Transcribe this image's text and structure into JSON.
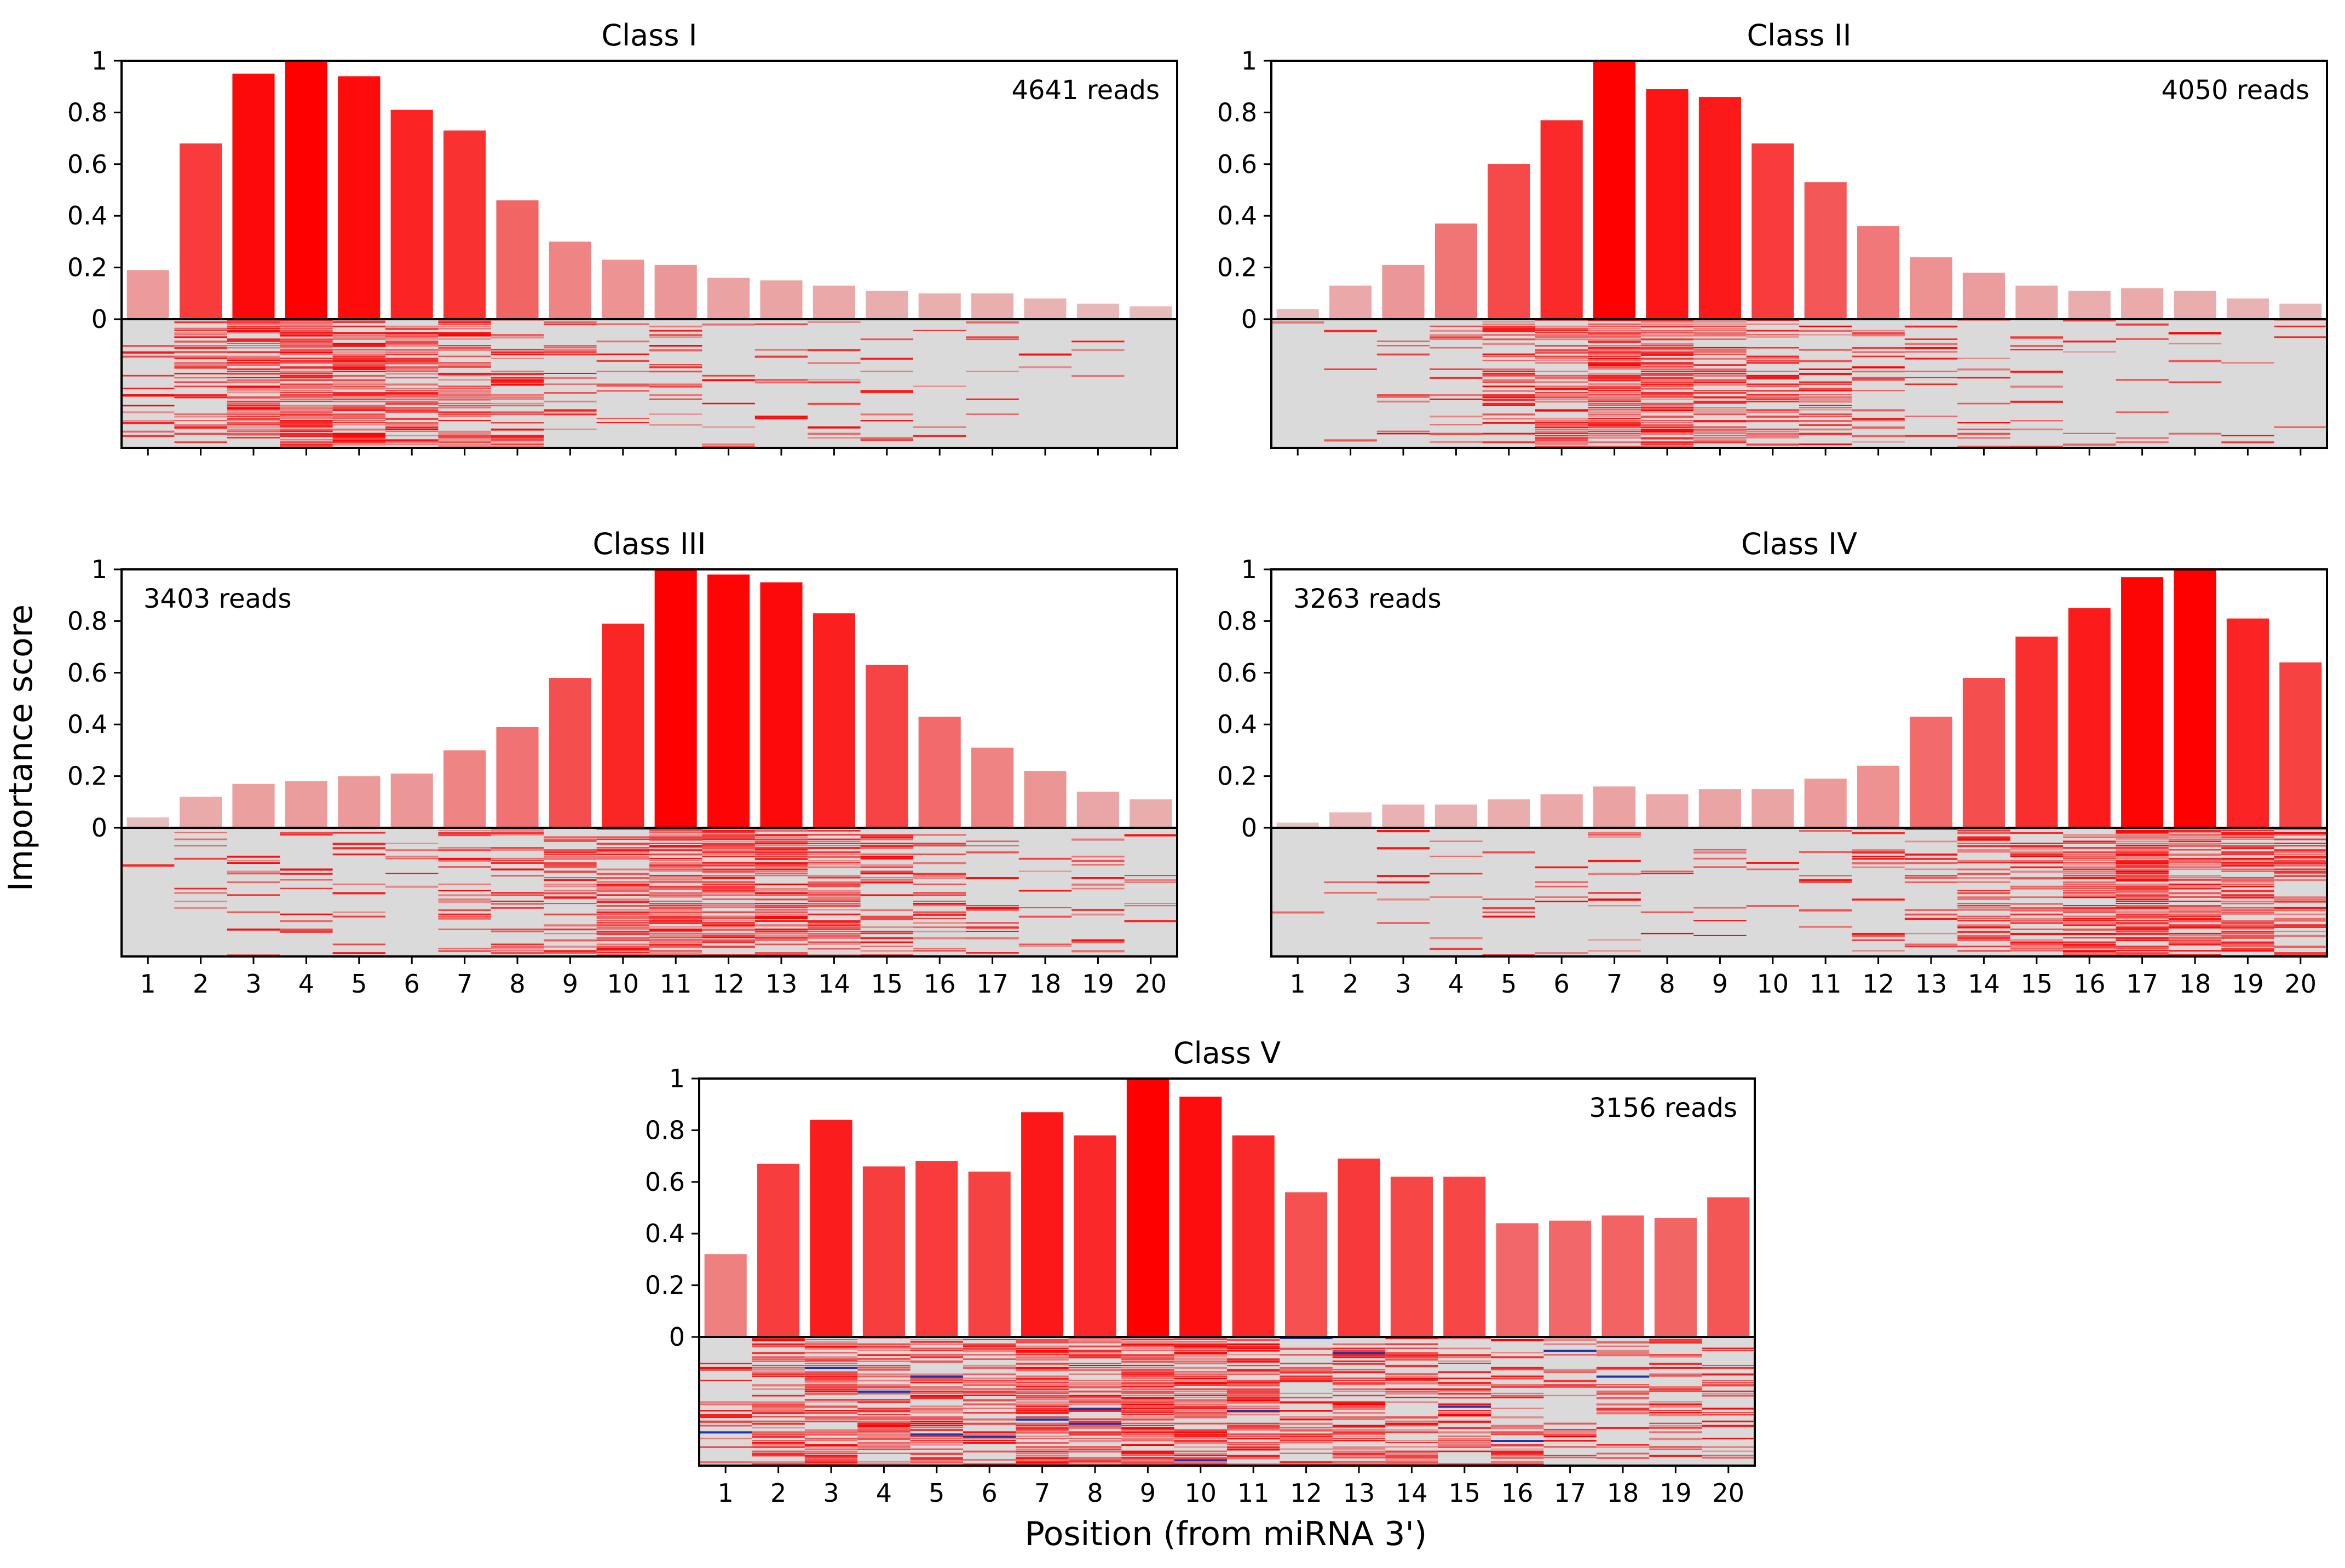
{
  "figure": {
    "ylabel": "Importance score",
    "xlabel": "Position (from miRNA 3')"
  },
  "colors": {
    "bar_max": "#ff0000",
    "bar_min": "#e6c8c8",
    "heatmap_background": "#dadada",
    "heatmap_hot": "#ff0000",
    "heatmap_negative": "#2233aa",
    "axis": "#000000"
  },
  "chart_data": [
    {
      "type": "bar",
      "title": "Class I",
      "annotation": "4641 reads",
      "annotation_position": "top-right",
      "categories": [
        "1",
        "2",
        "3",
        "4",
        "5",
        "6",
        "7",
        "8",
        "9",
        "10",
        "11",
        "12",
        "13",
        "14",
        "15",
        "16",
        "17",
        "18",
        "19",
        "20"
      ],
      "values": [
        0.19,
        0.68,
        0.95,
        1.0,
        0.94,
        0.81,
        0.73,
        0.46,
        0.3,
        0.23,
        0.21,
        0.16,
        0.15,
        0.13,
        0.11,
        0.1,
        0.1,
        0.08,
        0.06,
        0.05
      ],
      "ylim": [
        0,
        1
      ],
      "yticks": [
        "0",
        "0.2",
        "0.4",
        "0.6",
        "0.8",
        "1"
      ],
      "xlabel": "",
      "ylabel": "",
      "show_x_tick_labels": false
    },
    {
      "type": "bar",
      "title": "Class II",
      "annotation": "4050 reads",
      "annotation_position": "top-right",
      "categories": [
        "1",
        "2",
        "3",
        "4",
        "5",
        "6",
        "7",
        "8",
        "9",
        "10",
        "11",
        "12",
        "13",
        "14",
        "15",
        "16",
        "17",
        "18",
        "19",
        "20"
      ],
      "values": [
        0.04,
        0.13,
        0.21,
        0.37,
        0.6,
        0.77,
        1.0,
        0.89,
        0.86,
        0.68,
        0.53,
        0.36,
        0.24,
        0.18,
        0.13,
        0.11,
        0.12,
        0.11,
        0.08,
        0.06
      ],
      "ylim": [
        0,
        1
      ],
      "yticks": [
        "0",
        "0.2",
        "0.4",
        "0.6",
        "0.8",
        "1"
      ],
      "xlabel": "",
      "ylabel": "",
      "show_x_tick_labels": false
    },
    {
      "type": "bar",
      "title": "Class III",
      "annotation": "3403 reads",
      "annotation_position": "top-left",
      "categories": [
        "1",
        "2",
        "3",
        "4",
        "5",
        "6",
        "7",
        "8",
        "9",
        "10",
        "11",
        "12",
        "13",
        "14",
        "15",
        "16",
        "17",
        "18",
        "19",
        "20"
      ],
      "values": [
        0.04,
        0.12,
        0.17,
        0.18,
        0.2,
        0.21,
        0.3,
        0.39,
        0.58,
        0.79,
        1.0,
        0.98,
        0.95,
        0.83,
        0.63,
        0.43,
        0.31,
        0.22,
        0.14,
        0.11
      ],
      "ylim": [
        0,
        1
      ],
      "yticks": [
        "0",
        "0.2",
        "0.4",
        "0.6",
        "0.8",
        "1"
      ],
      "xlabel": "",
      "ylabel": "",
      "show_x_tick_labels": true
    },
    {
      "type": "bar",
      "title": "Class IV",
      "annotation": "3263 reads",
      "annotation_position": "top-left",
      "categories": [
        "1",
        "2",
        "3",
        "4",
        "5",
        "6",
        "7",
        "8",
        "9",
        "10",
        "11",
        "12",
        "13",
        "14",
        "15",
        "16",
        "17",
        "18",
        "19",
        "20"
      ],
      "values": [
        0.02,
        0.06,
        0.09,
        0.09,
        0.11,
        0.13,
        0.16,
        0.13,
        0.15,
        0.15,
        0.19,
        0.24,
        0.43,
        0.58,
        0.74,
        0.85,
        0.97,
        1.0,
        0.81,
        0.64
      ],
      "ylim": [
        0,
        1
      ],
      "yticks": [
        "0",
        "0.2",
        "0.4",
        "0.6",
        "0.8",
        "1"
      ],
      "xlabel": "",
      "ylabel": "",
      "show_x_tick_labels": true
    },
    {
      "type": "bar",
      "title": "Class V",
      "annotation": "3156 reads",
      "annotation_position": "top-right",
      "categories": [
        "1",
        "2",
        "3",
        "4",
        "5",
        "6",
        "7",
        "8",
        "9",
        "10",
        "11",
        "12",
        "13",
        "14",
        "15",
        "16",
        "17",
        "18",
        "19",
        "20"
      ],
      "values": [
        0.32,
        0.67,
        0.84,
        0.66,
        0.68,
        0.64,
        0.87,
        0.78,
        1.0,
        0.93,
        0.78,
        0.56,
        0.69,
        0.62,
        0.62,
        0.44,
        0.45,
        0.47,
        0.46,
        0.54
      ],
      "ylim": [
        0,
        1
      ],
      "yticks": [
        "0",
        "0.2",
        "0.4",
        "0.6",
        "0.8",
        "1"
      ],
      "xlabel": "",
      "ylabel": "",
      "show_x_tick_labels": true
    }
  ]
}
